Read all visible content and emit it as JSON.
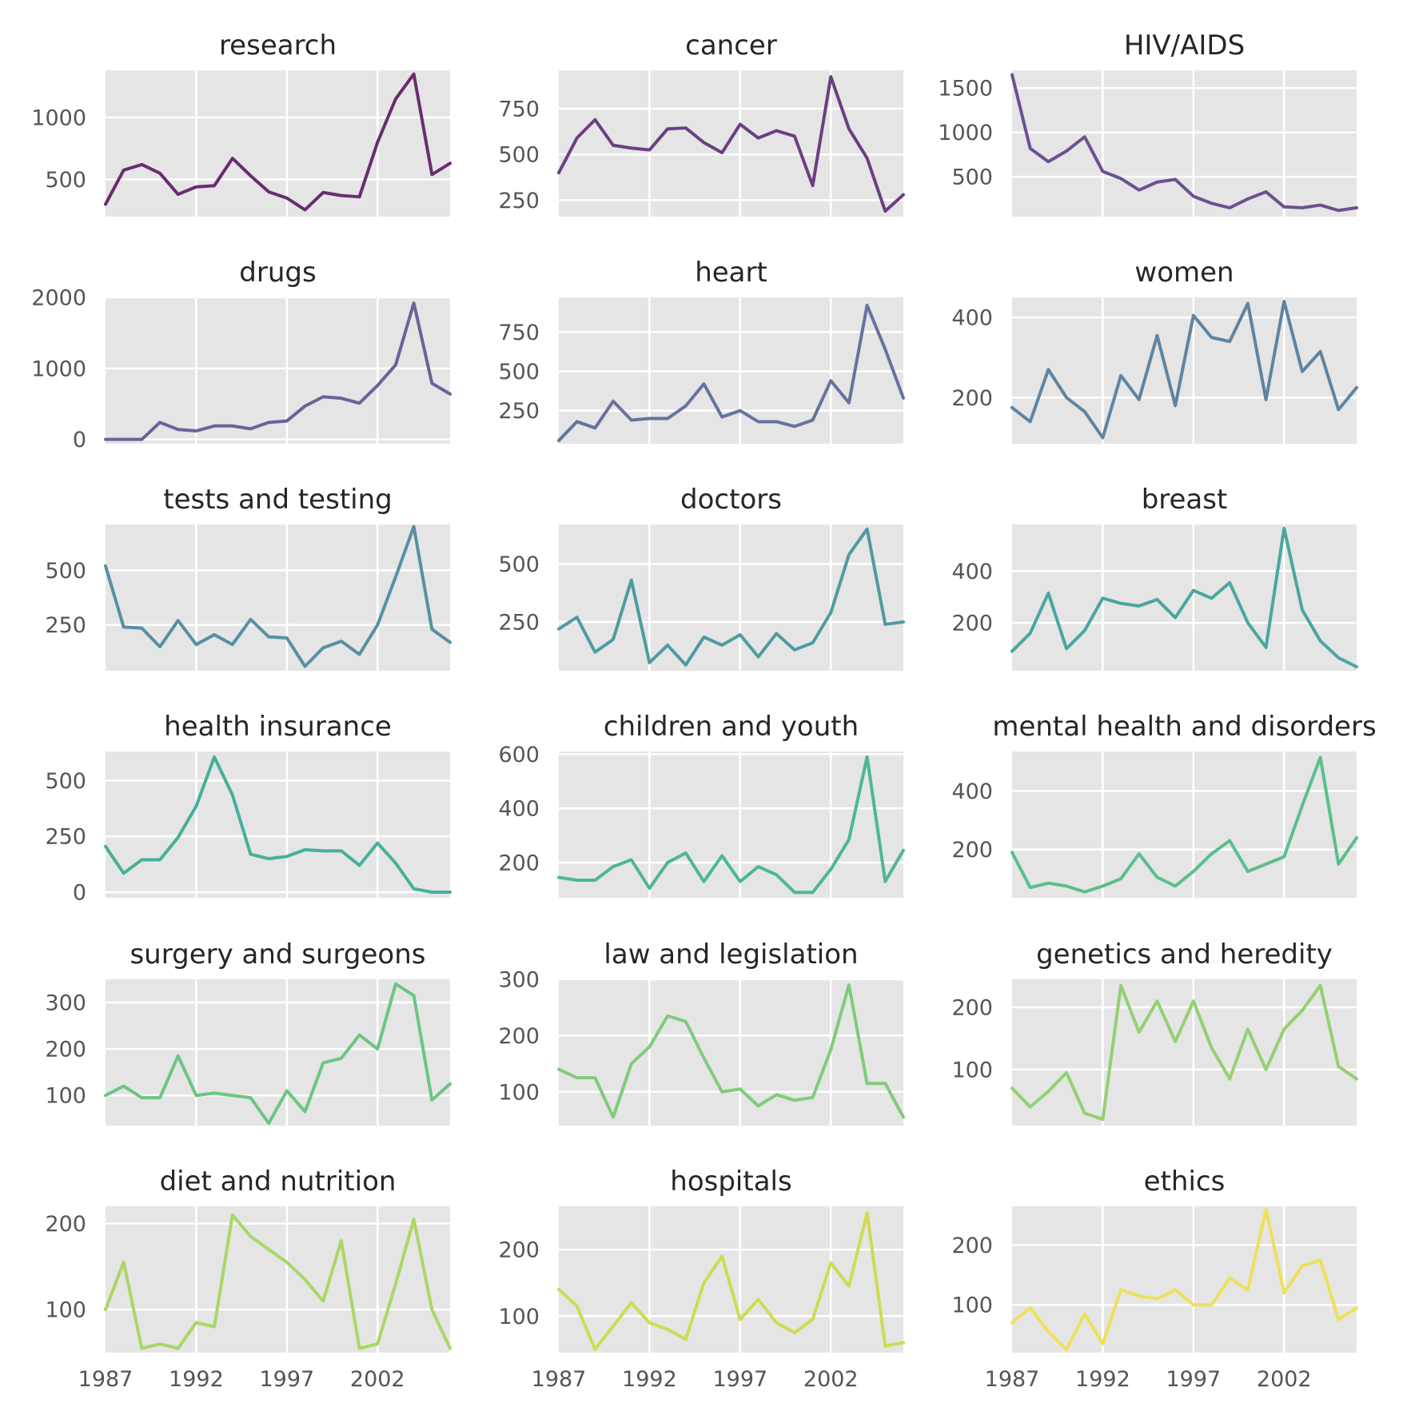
{
  "chart_data": {
    "type": "line",
    "layout": "small-multiples",
    "x": [
      1987,
      1988,
      1989,
      1990,
      1991,
      1992,
      1993,
      1994,
      1995,
      1996,
      1997,
      1998,
      1999,
      2000,
      2001,
      2002,
      2003,
      2004,
      2005,
      2006
    ],
    "xticks": [
      1987,
      1992,
      1997,
      2002
    ],
    "xlim": [
      1987,
      2006
    ],
    "grid": true,
    "panels": [
      {
        "title": "research",
        "color": "#6a2c70",
        "ylim": [
          200,
          1380
        ],
        "yticks": [
          500,
          1000
        ],
        "values": [
          300,
          575,
          620,
          550,
          380,
          440,
          450,
          670,
          530,
          400,
          350,
          255,
          395,
          370,
          360,
          800,
          1150,
          1350,
          540,
          630
        ]
      },
      {
        "title": "cancer",
        "color": "#6b3f82",
        "ylim": [
          160,
          960
        ],
        "yticks": [
          250,
          500,
          750
        ],
        "values": [
          400,
          590,
          690,
          550,
          535,
          525,
          640,
          645,
          565,
          510,
          665,
          590,
          630,
          600,
          330,
          925,
          640,
          480,
          190,
          280
        ]
      },
      {
        "title": "HIV/AIDS",
        "color": "#6c5191",
        "ylim": [
          50,
          1700
        ],
        "yticks": [
          500,
          1000,
          1500
        ],
        "values": [
          1650,
          820,
          670,
          790,
          950,
          560,
          480,
          350,
          440,
          470,
          280,
          200,
          150,
          250,
          330,
          160,
          150,
          180,
          120,
          150
        ]
      },
      {
        "title": "drugs",
        "color": "#6a629a",
        "ylim": [
          -60,
          2000
        ],
        "yticks": [
          0,
          1000,
          2000
        ],
        "values": [
          0,
          0,
          0,
          240,
          140,
          120,
          190,
          190,
          150,
          240,
          260,
          470,
          600,
          580,
          510,
          760,
          1050,
          1920,
          790,
          640
        ]
      },
      {
        "title": "heart",
        "color": "#66739f",
        "ylim": [
          40,
          970
        ],
        "yticks": [
          250,
          500,
          750
        ],
        "values": [
          60,
          180,
          140,
          310,
          190,
          200,
          200,
          280,
          420,
          210,
          250,
          180,
          180,
          150,
          190,
          440,
          300,
          920,
          640,
          330
        ]
      },
      {
        "title": "women",
        "color": "#5f84a1",
        "ylim": [
          85,
          450
        ],
        "yticks": [
          200,
          400
        ],
        "values": [
          175,
          140,
          270,
          200,
          165,
          100,
          255,
          195,
          355,
          180,
          405,
          350,
          340,
          435,
          195,
          440,
          265,
          315,
          170,
          225
        ]
      },
      {
        "title": "tests and testing",
        "color": "#5790a1",
        "ylim": [
          40,
          710
        ],
        "yticks": [
          250,
          500
        ],
        "values": [
          520,
          240,
          235,
          150,
          270,
          160,
          205,
          160,
          275,
          195,
          190,
          60,
          145,
          175,
          115,
          250,
          470,
          700,
          230,
          170
        ]
      },
      {
        "title": "doctors",
        "color": "#4f9ba1",
        "ylim": [
          40,
          670
        ],
        "yticks": [
          250,
          500
        ],
        "values": [
          220,
          270,
          120,
          175,
          430,
          75,
          150,
          65,
          185,
          150,
          195,
          100,
          200,
          130,
          160,
          290,
          540,
          650,
          240,
          250
        ]
      },
      {
        "title": "breast",
        "color": "#4aa6a0",
        "ylim": [
          15,
          580
        ],
        "yticks": [
          200,
          400
        ],
        "values": [
          90,
          160,
          315,
          100,
          170,
          295,
          275,
          265,
          290,
          220,
          325,
          295,
          355,
          200,
          105,
          565,
          250,
          130,
          65,
          30
        ]
      },
      {
        "title": "health insurance",
        "color": "#45b09a",
        "ylim": [
          -25,
          630
        ],
        "yticks": [
          0,
          250,
          500
        ],
        "values": [
          205,
          85,
          145,
          145,
          245,
          385,
          605,
          435,
          170,
          150,
          160,
          190,
          185,
          185,
          120,
          220,
          130,
          15,
          0,
          0
        ]
      },
      {
        "title": "children and youth",
        "color": "#4db795",
        "ylim": [
          70,
          610
        ],
        "yticks": [
          200,
          400,
          600
        ],
        "values": [
          145,
          135,
          135,
          185,
          210,
          105,
          200,
          235,
          130,
          225,
          130,
          185,
          155,
          90,
          90,
          175,
          285,
          590,
          130,
          245
        ]
      },
      {
        "title": "mental health and disorders",
        "color": "#5abf8c",
        "ylim": [
          35,
          535
        ],
        "yticks": [
          200,
          400
        ],
        "values": [
          190,
          70,
          85,
          75,
          55,
          75,
          100,
          185,
          105,
          75,
          125,
          185,
          230,
          125,
          150,
          175,
          350,
          515,
          150,
          240
        ]
      },
      {
        "title": "surgery and surgeons",
        "color": "#6bc582",
        "ylim": [
          35,
          350
        ],
        "yticks": [
          100,
          200,
          300
        ],
        "values": [
          100,
          120,
          95,
          95,
          185,
          100,
          105,
          100,
          95,
          40,
          110,
          65,
          170,
          180,
          230,
          200,
          340,
          315,
          90,
          125
        ]
      },
      {
        "title": "law and legislation",
        "color": "#80cb7b",
        "ylim": [
          40,
          300
        ],
        "yticks": [
          100,
          200,
          300
        ],
        "values": [
          140,
          125,
          125,
          55,
          150,
          180,
          235,
          225,
          160,
          100,
          105,
          75,
          95,
          85,
          90,
          175,
          290,
          115,
          115,
          55
        ]
      },
      {
        "title": "genetics and heredity",
        "color": "#93d072",
        "ylim": [
          10,
          245
        ],
        "yticks": [
          100,
          200
        ],
        "values": [
          70,
          40,
          65,
          95,
          30,
          20,
          235,
          160,
          210,
          145,
          210,
          135,
          85,
          165,
          100,
          165,
          195,
          235,
          105,
          85
        ]
      },
      {
        "title": "diet and nutrition",
        "color": "#a9d766",
        "ylim": [
          50,
          220
        ],
        "yticks": [
          100,
          200
        ],
        "values": [
          100,
          155,
          55,
          60,
          55,
          85,
          80,
          210,
          185,
          170,
          155,
          135,
          110,
          180,
          55,
          60,
          130,
          205,
          100,
          55
        ]
      },
      {
        "title": "hospitals",
        "color": "#cfdb52",
        "ylim": [
          45,
          265
        ],
        "yticks": [
          100,
          200
        ],
        "values": [
          140,
          115,
          50,
          85,
          120,
          90,
          80,
          65,
          150,
          190,
          95,
          125,
          90,
          75,
          95,
          180,
          145,
          255,
          55,
          60
        ]
      },
      {
        "title": "ethics",
        "color": "#eee05a",
        "ylim": [
          20,
          265
        ],
        "yticks": [
          100,
          200
        ],
        "values": [
          70,
          95,
          55,
          25,
          85,
          35,
          125,
          115,
          110,
          125,
          100,
          100,
          145,
          125,
          260,
          120,
          165,
          175,
          75,
          95
        ]
      }
    ]
  }
}
